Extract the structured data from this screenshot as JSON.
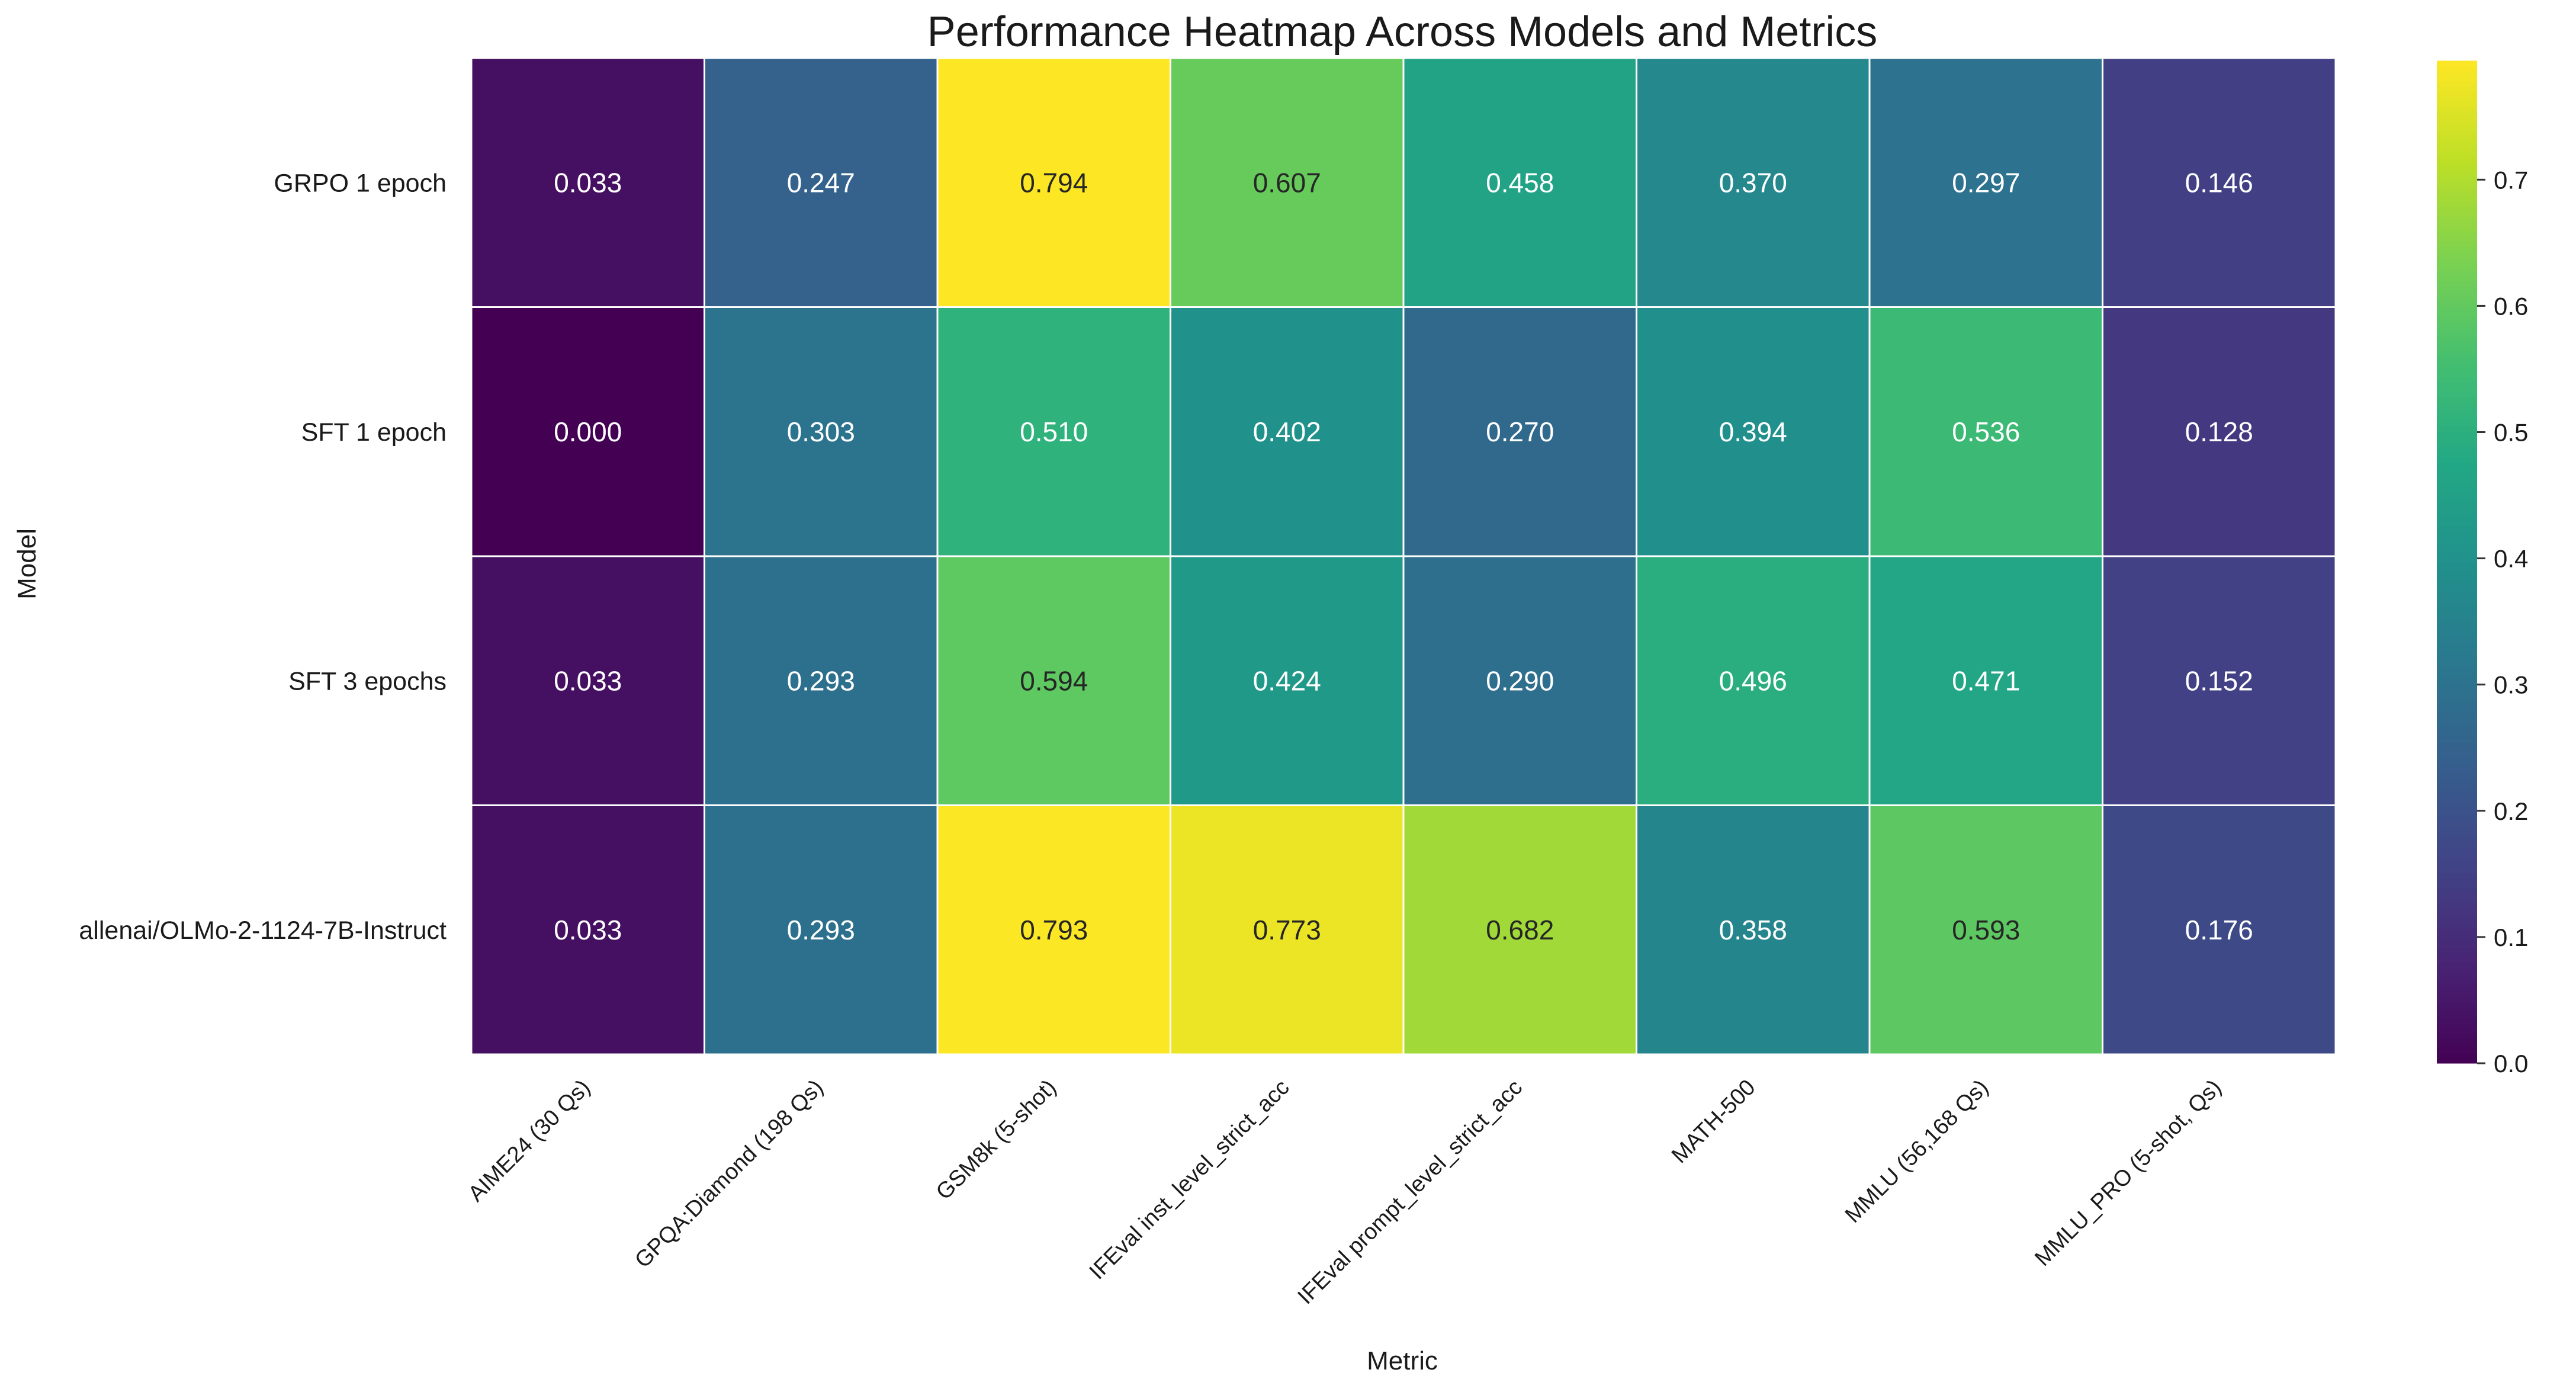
{
  "chart_data": {
    "type": "heatmap",
    "title": "Performance Heatmap Across Models and Metrics",
    "xlabel": "Metric",
    "ylabel": "Model",
    "rows": [
      "GRPO 1 epoch",
      "SFT 1 epoch",
      "SFT 3 epochs",
      "allenai/OLMo-2-1124-7B-Instruct"
    ],
    "columns": [
      "AIME24 (30 Qs)",
      "GPQA:Diamond (198 Qs)",
      "GSM8k (5-shot)",
      "IFEval inst_level_strict_acc",
      "IFEval prompt_level_strict_acc",
      "MATH-500",
      "MMLU (56,168 Qs)",
      "MMLU_PRO (5-shot, Qs)"
    ],
    "values": [
      [
        0.033,
        0.247,
        0.794,
        0.607,
        0.458,
        0.37,
        0.297,
        0.146
      ],
      [
        0.0,
        0.303,
        0.51,
        0.402,
        0.27,
        0.394,
        0.536,
        0.128
      ],
      [
        0.033,
        0.293,
        0.594,
        0.424,
        0.29,
        0.496,
        0.471,
        0.152
      ],
      [
        0.033,
        0.293,
        0.793,
        0.773,
        0.682,
        0.358,
        0.593,
        0.176
      ]
    ],
    "value_labels": [
      [
        "0.033",
        "0.247",
        "0.794",
        "0.607",
        "0.458",
        "0.370",
        "0.297",
        "0.146"
      ],
      [
        "0.000",
        "0.303",
        "0.510",
        "0.402",
        "0.270",
        "0.394",
        "0.536",
        "0.128"
      ],
      [
        "0.033",
        "0.293",
        "0.594",
        "0.424",
        "0.290",
        "0.496",
        "0.471",
        "0.152"
      ],
      [
        "0.033",
        "0.293",
        "0.793",
        "0.773",
        "0.682",
        "0.358",
        "0.593",
        "0.176"
      ]
    ],
    "colormap": "viridis",
    "vmin": 0.0,
    "vmax": 0.794,
    "colorbar": {
      "ticks": [
        0.0,
        0.1,
        0.2,
        0.3,
        0.4,
        0.5,
        0.6,
        0.7
      ],
      "tick_labels": [
        "0.0",
        "0.1",
        "0.2",
        "0.3",
        "0.4",
        "0.5",
        "0.6",
        "0.7"
      ],
      "placement": "right"
    }
  }
}
